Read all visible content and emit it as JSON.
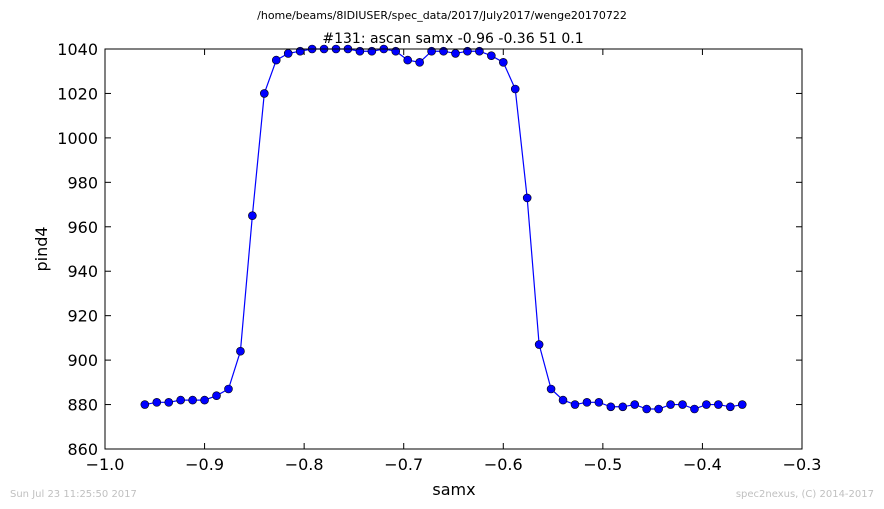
{
  "chart_data": {
    "type": "line",
    "suptitle": "/home/beams/8IDIUSER/spec_data/2017/July2017/wenge20170722",
    "title": "#131: ascan  samx -0.96 -0.36  51 0.1",
    "xlabel": "samx",
    "ylabel": "pind4",
    "xlim": [
      -1.0,
      -0.3
    ],
    "ylim": [
      860,
      1040
    ],
    "xticks": [
      -1.0,
      -0.9,
      -0.8,
      -0.7,
      -0.6,
      -0.5,
      -0.4,
      -0.3
    ],
    "xtick_labels": [
      "−1.0",
      "−0.9",
      "−0.8",
      "−0.7",
      "−0.6",
      "−0.5",
      "−0.4",
      "−0.3"
    ],
    "yticks": [
      860,
      880,
      900,
      920,
      940,
      960,
      980,
      1000,
      1020,
      1040
    ],
    "ytick_labels": [
      "860",
      "880",
      "900",
      "920",
      "940",
      "960",
      "980",
      "1000",
      "1020",
      "1040"
    ],
    "grid": false,
    "series": [
      {
        "color": "#0000ff",
        "x": [
          -0.96,
          -0.948,
          -0.936,
          -0.924,
          -0.912,
          -0.9,
          -0.888,
          -0.876,
          -0.864,
          -0.852,
          -0.84,
          -0.828,
          -0.816,
          -0.804,
          -0.792,
          -0.78,
          -0.768,
          -0.756,
          -0.744,
          -0.732,
          -0.72,
          -0.708,
          -0.696,
          -0.684,
          -0.672,
          -0.66,
          -0.648,
          -0.636,
          -0.624,
          -0.612,
          -0.6,
          -0.588,
          -0.576,
          -0.564,
          -0.552,
          -0.54,
          -0.528,
          -0.516,
          -0.504,
          -0.492,
          -0.48,
          -0.468,
          -0.456,
          -0.444,
          -0.432,
          -0.42,
          -0.408,
          -0.396,
          -0.384,
          -0.372,
          -0.36
        ],
        "y": [
          880,
          881,
          881,
          882,
          882,
          882,
          884,
          887,
          904,
          965,
          1020,
          1035,
          1038,
          1039,
          1040,
          1040,
          1040,
          1040,
          1039,
          1039,
          1040,
          1039,
          1035,
          1034,
          1039,
          1039,
          1038,
          1039,
          1039,
          1037,
          1034,
          1022,
          973,
          907,
          887,
          882,
          880,
          881,
          881,
          879,
          879,
          880,
          878,
          878,
          880,
          880,
          878,
          880,
          880,
          879,
          880
        ]
      }
    ]
  },
  "footer": {
    "left": "Sun Jul 23 11:25:50 2017",
    "right": "spec2nexus, (C) 2014-2017"
  }
}
